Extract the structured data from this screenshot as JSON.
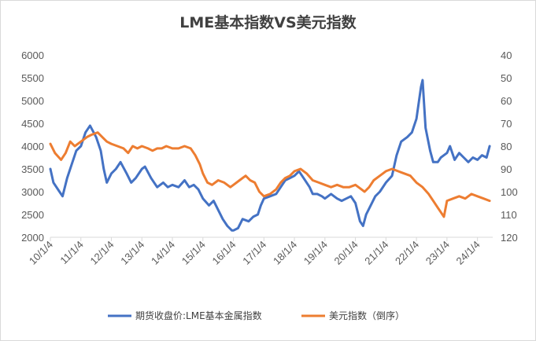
{
  "chart_data": {
    "type": "line",
    "title": "LME基本指数VS美元指数",
    "x_tick_labels": [
      "10/1/4",
      "11/1/4",
      "12/1/4",
      "13/1/4",
      "14/1/4",
      "15/1/4",
      "16/1/4",
      "17/1/4",
      "18/1/4",
      "19/1/4",
      "20/1/4",
      "21/1/4",
      "22/1/4",
      "23/1/4",
      "24/1/4"
    ],
    "x_range": [
      2010.0,
      2024.5
    ],
    "y_left": {
      "ticks": [
        2000,
        2500,
        3000,
        3500,
        4000,
        4500,
        5000,
        5500,
        6000
      ],
      "range": [
        2000,
        6000
      ]
    },
    "y_right": {
      "ticks": [
        40,
        50,
        60,
        70,
        80,
        90,
        100,
        110,
        120
      ],
      "range": [
        40,
        120
      ],
      "inverted": true
    },
    "grid": false,
    "legend_position": "bottom",
    "series": [
      {
        "name": "期货收盘价:LME基本金属指数",
        "axis": "left",
        "color": "#4472C4",
        "x": [
          2010.0,
          2010.1,
          2010.3,
          2010.4,
          2010.55,
          2010.7,
          2010.85,
          2011.0,
          2011.15,
          2011.3,
          2011.5,
          2011.65,
          2011.75,
          2011.85,
          2012.0,
          2012.15,
          2012.3,
          2012.5,
          2012.65,
          2012.8,
          2013.0,
          2013.1,
          2013.3,
          2013.5,
          2013.7,
          2013.85,
          2014.0,
          2014.2,
          2014.4,
          2014.55,
          2014.7,
          2014.85,
          2015.0,
          2015.2,
          2015.35,
          2015.5,
          2015.65,
          2015.8,
          2015.95,
          2016.0,
          2016.15,
          2016.3,
          2016.5,
          2016.65,
          2016.8,
          2016.9,
          2017.0,
          2017.2,
          2017.4,
          2017.55,
          2017.7,
          2017.85,
          2018.0,
          2018.15,
          2018.3,
          2018.5,
          2018.6,
          2018.75,
          2018.9,
          2019.0,
          2019.2,
          2019.4,
          2019.55,
          2019.7,
          2019.85,
          2020.0,
          2020.15,
          2020.25,
          2020.35,
          2020.5,
          2020.65,
          2020.8,
          2021.0,
          2021.2,
          2021.35,
          2021.5,
          2021.7,
          2021.85,
          2022.0,
          2022.15,
          2022.2,
          2022.3,
          2022.45,
          2022.55,
          2022.7,
          2022.8,
          2022.9,
          2023.0,
          2023.1,
          2023.25,
          2023.4,
          2023.55,
          2023.7,
          2023.85,
          2024.0,
          2024.15,
          2024.3,
          2024.4
        ],
        "values": [
          3500,
          3200,
          3000,
          2900,
          3300,
          3600,
          3900,
          4000,
          4300,
          4450,
          4200,
          3900,
          3500,
          3200,
          3400,
          3500,
          3650,
          3400,
          3200,
          3300,
          3500,
          3550,
          3300,
          3100,
          3200,
          3100,
          3150,
          3100,
          3250,
          3100,
          3150,
          3050,
          2850,
          2700,
          2800,
          2600,
          2400,
          2250,
          2150,
          2150,
          2200,
          2400,
          2350,
          2450,
          2500,
          2700,
          2850,
          2900,
          2950,
          3100,
          3250,
          3300,
          3350,
          3450,
          3300,
          3100,
          2950,
          2950,
          2900,
          2850,
          2950,
          2850,
          2800,
          2850,
          2900,
          2750,
          2350,
          2250,
          2500,
          2700,
          2900,
          3000,
          3200,
          3350,
          3800,
          4100,
          4200,
          4300,
          4600,
          5300,
          5450,
          4400,
          3900,
          3650,
          3650,
          3750,
          3800,
          3850,
          4000,
          3700,
          3850,
          3750,
          3650,
          3750,
          3700,
          3800,
          3750,
          4000
        ]
      },
      {
        "name": "美元指数（倒序）",
        "axis": "right",
        "color": "#ED7D31",
        "x": [
          2010.0,
          2010.15,
          2010.35,
          2010.5,
          2010.65,
          2010.8,
          2011.0,
          2011.2,
          2011.35,
          2011.55,
          2011.7,
          2011.85,
          2012.0,
          2012.2,
          2012.4,
          2012.55,
          2012.7,
          2012.85,
          2013.0,
          2013.2,
          2013.35,
          2013.5,
          2013.65,
          2013.8,
          2014.0,
          2014.2,
          2014.4,
          2014.6,
          2014.75,
          2014.9,
          2015.0,
          2015.15,
          2015.3,
          2015.5,
          2015.7,
          2015.9,
          2016.0,
          2016.2,
          2016.4,
          2016.55,
          2016.7,
          2016.85,
          2017.0,
          2017.2,
          2017.4,
          2017.55,
          2017.7,
          2017.85,
          2018.0,
          2018.2,
          2018.4,
          2018.6,
          2018.8,
          2019.0,
          2019.2,
          2019.4,
          2019.6,
          2019.8,
          2020.0,
          2020.2,
          2020.3,
          2020.45,
          2020.6,
          2020.8,
          2021.0,
          2021.2,
          2021.4,
          2021.6,
          2021.8,
          2022.0,
          2022.2,
          2022.4,
          2022.55,
          2022.7,
          2022.8,
          2022.9,
          2023.0,
          2023.2,
          2023.4,
          2023.6,
          2023.8,
          2024.0,
          2024.2,
          2024.4
        ],
        "values": [
          79,
          83,
          86,
          83,
          78,
          80,
          78,
          76,
          75,
          74,
          76,
          78,
          79,
          80,
          81,
          83,
          80,
          81,
          80,
          81,
          82,
          81,
          81,
          80,
          81,
          81,
          80,
          81,
          84,
          88,
          92,
          96,
          97,
          95,
          96,
          98,
          97,
          95,
          93,
          95,
          96,
          100,
          102,
          101,
          99,
          96,
          94,
          93,
          91,
          90,
          92,
          95,
          96,
          97,
          98,
          97,
          98,
          98,
          97,
          99,
          100,
          98,
          95,
          93,
          91,
          90,
          91,
          92,
          93,
          96,
          98,
          101,
          104,
          107,
          109,
          111,
          104,
          103,
          102,
          103,
          101,
          102,
          103,
          104
        ]
      }
    ]
  }
}
